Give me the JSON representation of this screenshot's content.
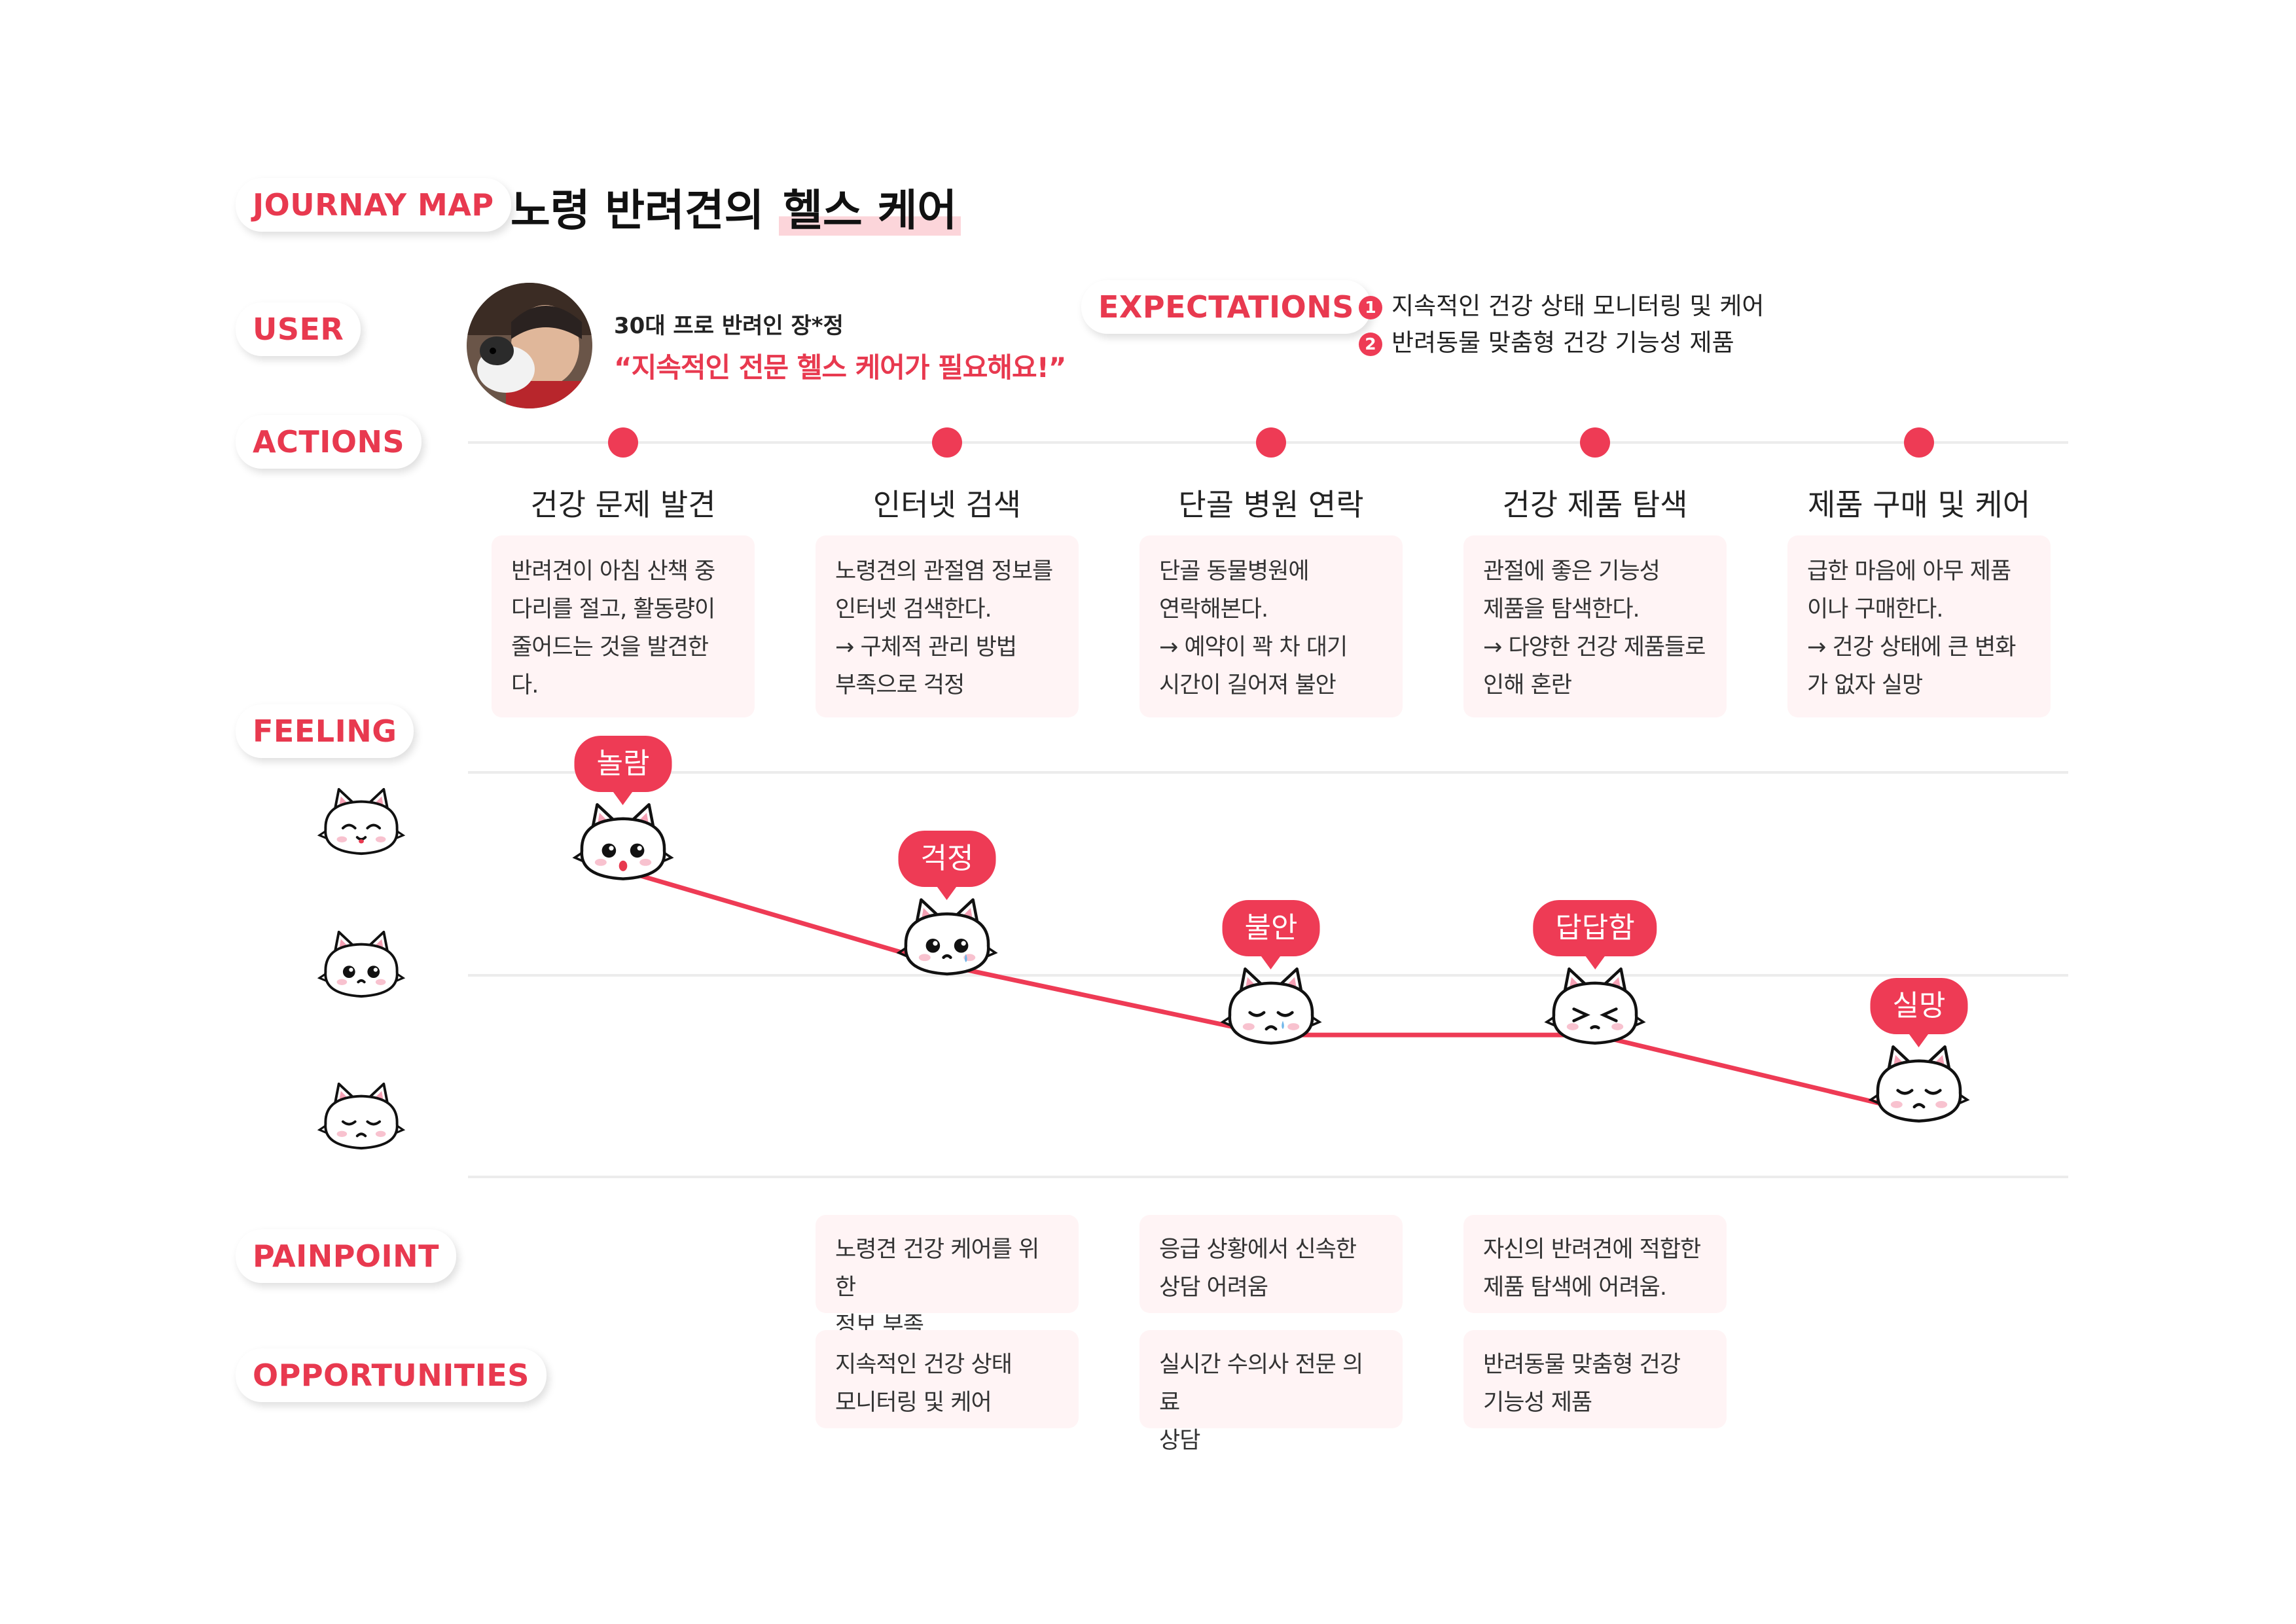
{
  "header": {
    "tag": "JOURNAY MAP",
    "title_pre": "노령 반려견의",
    "title_hl": "헬스 케어"
  },
  "user": {
    "tag": "USER",
    "name": "30대 프로 반려인 장*정",
    "quote": "“지속적인 전문 헬스 케어가 필요해요!”"
  },
  "expectations": {
    "tag": "EXPECTATIONS",
    "items": [
      {
        "num": "1",
        "text": "지속적인 건강 상태 모니터링 및 케어"
      },
      {
        "num": "2",
        "text": "반려동물 맞춤형 건강 기능성 제품"
      }
    ]
  },
  "sections": {
    "actions": "ACTIONS",
    "feeling": "FEELING",
    "painpoint": "PAINPOINT",
    "opportunities": "OPPORTUNITIES"
  },
  "stages": [
    {
      "title": "건강 문제 발견",
      "action": "반려견이 아침 산책 중\n다리를 절고, 활동량이\n줄어드는 것을 발견한다.",
      "feeling": "놀람",
      "level": 1.0
    },
    {
      "title": "인터넷 검색",
      "action": "노령견의 관절염 정보를\n인터넷 검색한다.\n→ 구체적 관리 방법\n부족으로 걱정",
      "feeling": "걱정",
      "level": 0.45,
      "pain": "노령견 건강 케어를 위한\n정보 부족",
      "opp": "지속적인 건강 상태\n모니터링 및 케어"
    },
    {
      "title": "단골 병원 연락",
      "action": "단골 동물병원에\n연락해본다.\n→ 예약이 꽉 차 대기\n시간이 길어져 불안",
      "feeling": "불안",
      "level": 0.05,
      "pain": "응급 상황에서 신속한\n상담 어려움",
      "opp": "실시간 수의사 전문 의료\n상담"
    },
    {
      "title": "건강 제품 탐색",
      "action": "관절에 좋은 기능성\n제품을 탐색한다.\n→ 다양한 건강 제품들로\n인해 혼란",
      "feeling": "답답함",
      "level": 0.05,
      "pain": "자신의 반려견에 적합한\n제품 탐색에 어려움.",
      "opp": "반려동물 맞춤형 건강\n기능성 제품"
    },
    {
      "title": "제품 구매 및 케어",
      "action": "급한 마음에 아무 제품\n이나 구매한다.\n→ 건강 상태에 큰 변화\n가 없자 실망",
      "feeling": "실망",
      "level": -0.4
    }
  ],
  "colors": {
    "accent": "#ee3b55",
    "card": "#fff4f5"
  }
}
